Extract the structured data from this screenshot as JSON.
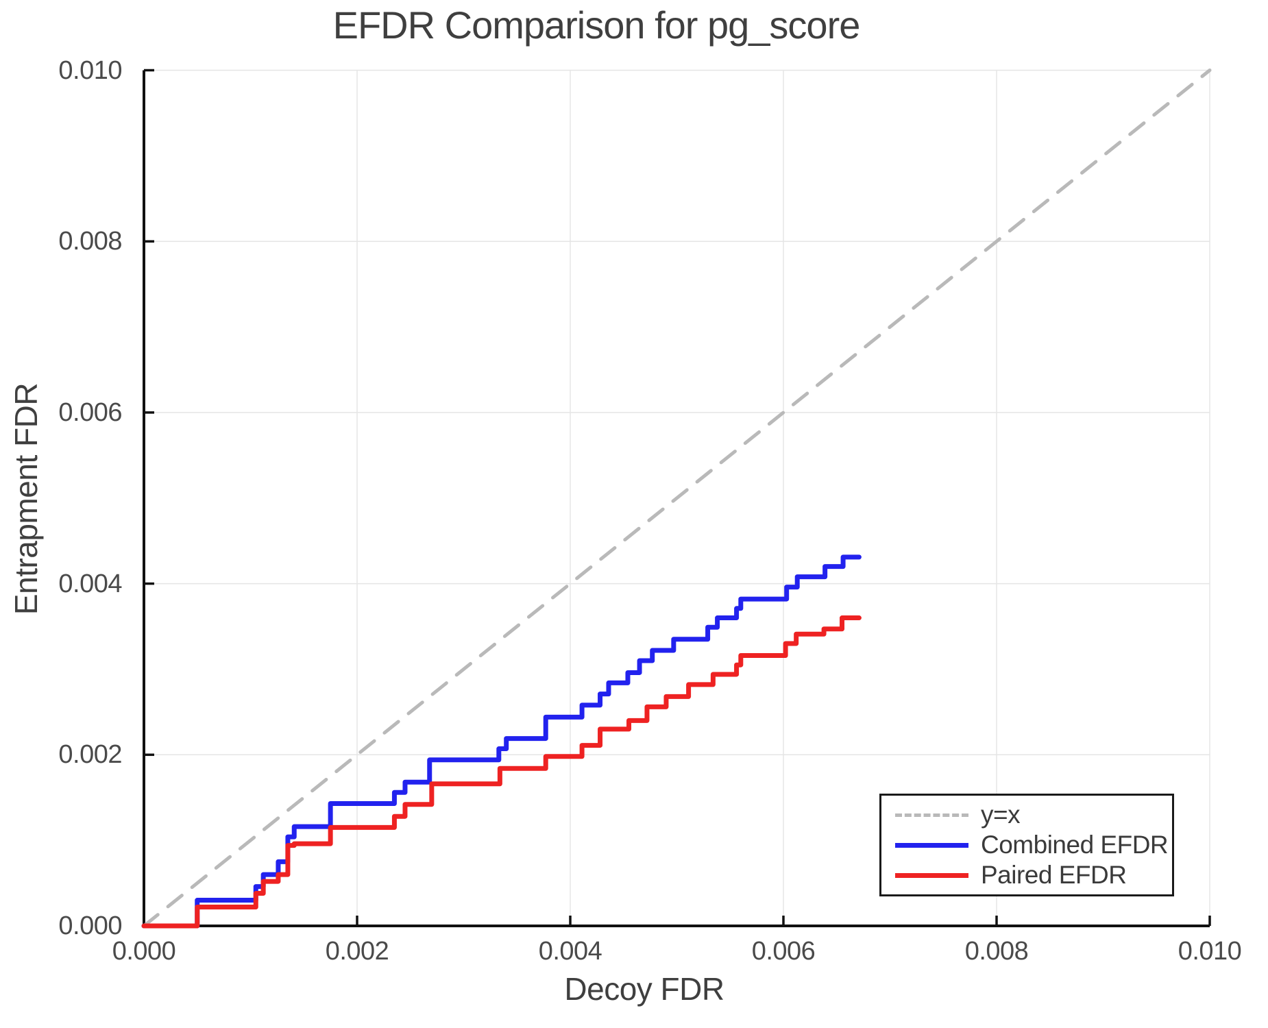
{
  "title": "EFDR Comparison for pg_score",
  "axes": {
    "xlabel": "Decoy FDR",
    "ylabel": "Entrapment FDR",
    "x_ticks": [
      "0.000",
      "0.002",
      "0.004",
      "0.006",
      "0.008",
      "0.010"
    ],
    "y_ticks": [
      "0.000",
      "0.002",
      "0.004",
      "0.006",
      "0.008",
      "0.010"
    ]
  },
  "legend": {
    "items": [
      {
        "label": "y=x",
        "color": "#b9b9b9",
        "style": "dashed"
      },
      {
        "label": "Combined EFDR",
        "color": "#2222ee",
        "style": "solid"
      },
      {
        "label": "Paired EFDR",
        "color": "#ee2222",
        "style": "solid"
      }
    ]
  },
  "colors": {
    "grid": "#e5e5e5",
    "axis": "#111111",
    "identity_line": "#b9b9b9",
    "combined": "#2222ee",
    "paired": "#ee2222",
    "text": "#454545"
  },
  "chart_data": {
    "type": "line",
    "title": "EFDR Comparison for pg_score",
    "xlabel": "Decoy FDR",
    "ylabel": "Entrapment FDR",
    "xlim": [
      0,
      0.01
    ],
    "ylim": [
      0,
      0.01
    ],
    "grid": true,
    "legend_position": "lower right",
    "series": [
      {
        "name": "y=x",
        "color": "#b9b9b9",
        "style": "dashed",
        "step": false,
        "x": [
          0,
          0.01
        ],
        "y": [
          0,
          0.01
        ]
      },
      {
        "name": "Combined EFDR",
        "color": "#2222ee",
        "style": "solid",
        "step": true,
        "x": [
          0.0,
          0.0005,
          0.00105,
          0.00112,
          0.00126,
          0.00135,
          0.00141,
          0.00175,
          0.00235,
          0.00245,
          0.00268,
          0.00333,
          0.0034,
          0.00377,
          0.00411,
          0.00428,
          0.00436,
          0.00454,
          0.00465,
          0.00477,
          0.00497,
          0.00529,
          0.00538,
          0.00556,
          0.0056,
          0.00603,
          0.00613,
          0.00639,
          0.00656,
          0.00671
        ],
        "y": [
          0.0,
          0.0003,
          0.00046,
          0.0006,
          0.00075,
          0.00104,
          0.00116,
          0.00143,
          0.00156,
          0.00168,
          0.00194,
          0.00207,
          0.00219,
          0.00244,
          0.00258,
          0.00271,
          0.00284,
          0.00296,
          0.0031,
          0.00322,
          0.00335,
          0.00349,
          0.0036,
          0.00371,
          0.00382,
          0.00396,
          0.00408,
          0.0042,
          0.00431,
          0.00431
        ]
      },
      {
        "name": "Paired EFDR",
        "color": "#ee2222",
        "style": "solid",
        "step": true,
        "x": [
          0.0,
          0.0005,
          0.00105,
          0.00112,
          0.00126,
          0.00135,
          0.00141,
          0.00175,
          0.00235,
          0.00245,
          0.0027,
          0.00334,
          0.00377,
          0.00411,
          0.00428,
          0.00455,
          0.00472,
          0.0049,
          0.00511,
          0.00534,
          0.00556,
          0.0056,
          0.00602,
          0.00612,
          0.00638,
          0.00655,
          0.00671
        ],
        "y": [
          0.0,
          0.00022,
          0.00038,
          0.00052,
          0.0006,
          0.00094,
          0.00096,
          0.00115,
          0.00128,
          0.00142,
          0.00166,
          0.00184,
          0.00198,
          0.00211,
          0.0023,
          0.0024,
          0.00256,
          0.00268,
          0.00282,
          0.00294,
          0.00305,
          0.00316,
          0.0033,
          0.00341,
          0.00347,
          0.0036,
          0.0036
        ]
      }
    ]
  }
}
